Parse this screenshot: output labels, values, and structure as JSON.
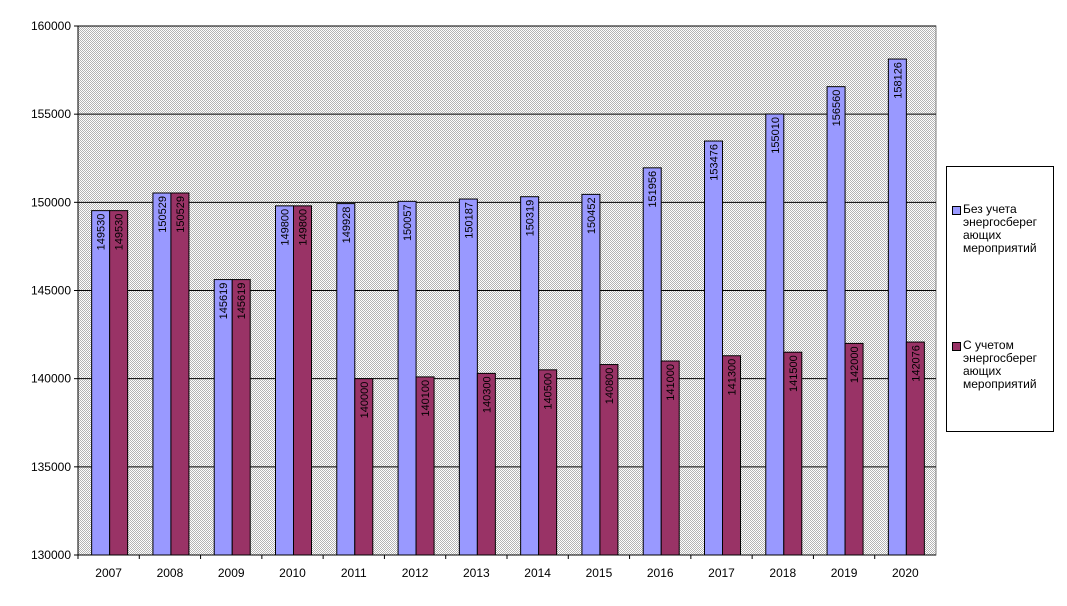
{
  "chart_data": {
    "type": "bar",
    "title": "",
    "xlabel": "",
    "ylabel": "",
    "ylim": [
      130000,
      160000
    ],
    "yticks": [
      "130000",
      "135000",
      "140000",
      "145000",
      "150000",
      "155000",
      "160000"
    ],
    "categories": [
      "2007",
      "2008",
      "2009",
      "2010",
      "2011",
      "2012",
      "2013",
      "2014",
      "2015",
      "2016",
      "2017",
      "2018",
      "2019",
      "2020"
    ],
    "series": [
      {
        "name": "Без учета энергосберег ающих мероприятий",
        "color": "#9999ff",
        "values": [
          149530,
          150529,
          145619,
          149800,
          149928,
          150057,
          150187,
          150319,
          150452,
          151956,
          153476,
          155010,
          156560,
          158126
        ]
      },
      {
        "name": "С учетом энергосберег ающих мероприятий",
        "color": "#993366",
        "values": [
          149530,
          150529,
          145619,
          149800,
          140000,
          140100,
          140300,
          140500,
          140800,
          141000,
          141300,
          141500,
          142000,
          142076
        ]
      }
    ],
    "plot_background": "#c0c0c0",
    "gridlines": true,
    "legend_position": "right"
  },
  "legend": {
    "items": [
      {
        "label_lines": [
          "Без учета",
          "энергосберег",
          "ающих",
          "мероприятий"
        ]
      },
      {
        "label_lines": [
          "С учетом",
          "энергосберег",
          "ающих",
          "мероприятий"
        ]
      }
    ]
  }
}
